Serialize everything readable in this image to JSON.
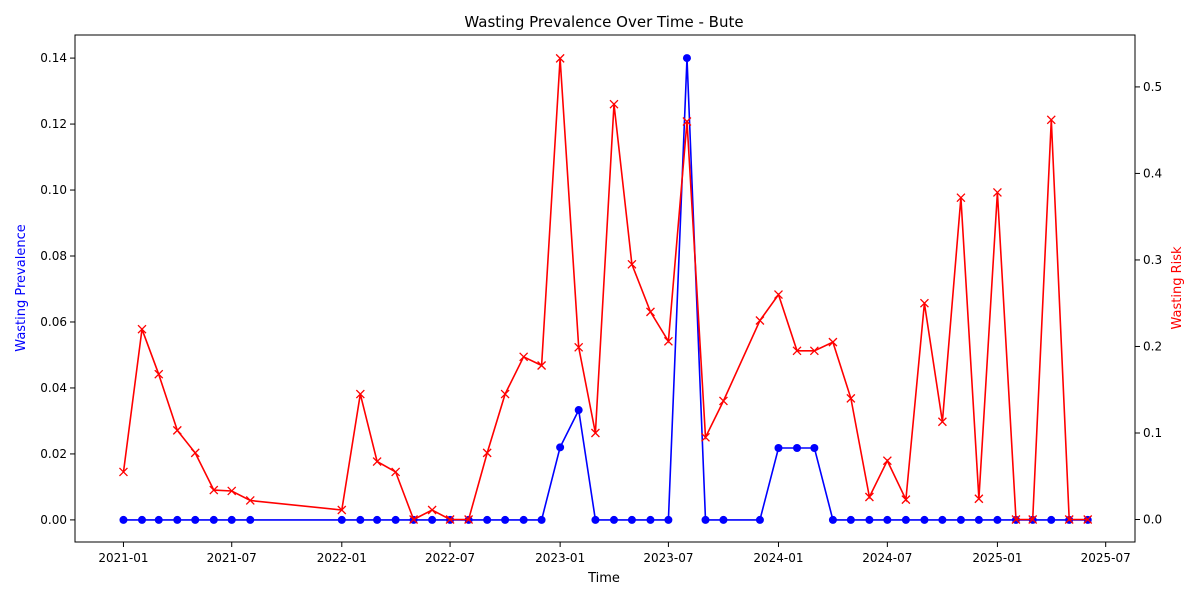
{
  "chart_data": {
    "type": "line",
    "title": "Wasting Prevalence Over Time - Bute",
    "xlabel": "Time",
    "ylabel_left": "Wasting Prevalence",
    "ylabel_right": "Wasting Risk",
    "x_ticks": [
      "2021-01",
      "2021-07",
      "2022-01",
      "2022-07",
      "2023-01",
      "2023-07",
      "2024-01",
      "2024-07",
      "2025-01",
      "2025-07"
    ],
    "y_left_ticks": [
      "0.00",
      "0.02",
      "0.04",
      "0.06",
      "0.08",
      "0.10",
      "0.12",
      "0.14"
    ],
    "y_right_ticks": [
      "0.0",
      "0.1",
      "0.2",
      "0.3",
      "0.4",
      "0.5"
    ],
    "ylim_left": [
      -0.0067,
      0.147
    ],
    "ylim_right": [
      -0.026,
      0.56
    ],
    "xlim": [
      "2020-10-12",
      "2025-08-19"
    ],
    "x": [
      "2021-01-01",
      "2021-02-01",
      "2021-03-01",
      "2021-04-01",
      "2021-05-01",
      "2021-06-01",
      "2021-07-01",
      "2021-08-01",
      "2022-01-01",
      "2022-02-01",
      "2022-03-01",
      "2022-04-01",
      "2022-05-01",
      "2022-06-01",
      "2022-07-01",
      "2022-08-01",
      "2022-09-01",
      "2022-10-01",
      "2022-11-01",
      "2022-12-01",
      "2023-01-01",
      "2023-02-01",
      "2023-03-01",
      "2023-04-01",
      "2023-05-01",
      "2023-06-01",
      "2023-07-01",
      "2023-08-01",
      "2023-09-01",
      "2023-10-01",
      "2023-12-01",
      "2024-01-01",
      "2024-02-01",
      "2024-03-01",
      "2024-04-01",
      "2024-05-01",
      "2024-06-01",
      "2024-07-01",
      "2024-08-01",
      "2024-09-01",
      "2024-10-01",
      "2024-11-01",
      "2024-12-01",
      "2025-01-01",
      "2025-02-01",
      "2025-03-01",
      "2025-04-01",
      "2025-05-01",
      "2025-06-01"
    ],
    "series": [
      {
        "name": "Wasting Prevalence",
        "axis": "left",
        "color": "#0000ff",
        "marker": "circle",
        "values": [
          0,
          0,
          0,
          0,
          0,
          0,
          0,
          0,
          0,
          0,
          0,
          0,
          0,
          0,
          0,
          0,
          0,
          0,
          0,
          0,
          0.022,
          0.0333,
          0,
          0,
          0,
          0,
          0,
          0.14,
          0,
          0,
          0,
          0.0218,
          0.0218,
          0.0218,
          0,
          0,
          0,
          0,
          0,
          0,
          0,
          0,
          0,
          0,
          0,
          0,
          0,
          0,
          0
        ]
      },
      {
        "name": "Wasting Risk",
        "axis": "right",
        "color": "#ff0000",
        "marker": "x",
        "values": [
          0.055,
          0.22,
          0.168,
          0.103,
          0.077,
          0.034,
          0.033,
          0.022,
          0.011,
          0.145,
          0.067,
          0.055,
          0,
          0.011,
          0,
          0,
          0.077,
          0.145,
          0.188,
          0.178,
          0.533,
          0.199,
          0.1,
          0.48,
          0.295,
          0.24,
          0.206,
          0.46,
          0.095,
          0.137,
          0.23,
          0.26,
          0.195,
          0.195,
          0.205,
          0.14,
          0.026,
          0.068,
          0.023,
          0.25,
          0.113,
          0.372,
          0.024,
          0.378,
          0,
          0,
          0.462,
          0,
          0
        ]
      }
    ],
    "grid": false,
    "legend": "none"
  }
}
